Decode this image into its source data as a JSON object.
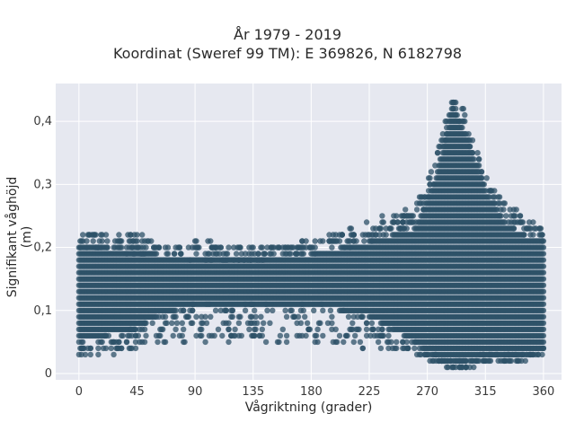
{
  "chart_data": {
    "type": "scatter",
    "title": "År 1979 - 2019",
    "subtitle": "Koordinat (Sweref 99 TM): E 369826, N 6182798",
    "xlabel": "Vågriktning (grader)",
    "ylabel": "Signifikant våghöjd (m)",
    "xlim": [
      -18,
      374
    ],
    "ylim": [
      -0.01,
      0.46
    ],
    "x_ticks": [
      0,
      45,
      90,
      135,
      180,
      225,
      270,
      315,
      360
    ],
    "x_tick_labels": [
      "0",
      "45",
      "90",
      "135",
      "180",
      "225",
      "270",
      "315",
      "360"
    ],
    "y_ticks": [
      0,
      0.1,
      0.2,
      0.3,
      0.4
    ],
    "y_tick_labels": [
      "0",
      "0,1",
      "0,2",
      "0,3",
      "0,4"
    ],
    "grid": true,
    "legend": "none",
    "colors": {
      "marker": "#2e5168",
      "plot_bg": "#e6e8f0",
      "grid": "#ffffff"
    },
    "envelope": [
      {
        "x": 0,
        "ymin": 0.03,
        "ymax": 0.23,
        "core_min": 0.05,
        "core_max": 0.2
      },
      {
        "x": 20,
        "ymin": 0.03,
        "ymax": 0.22,
        "core_min": 0.06,
        "core_max": 0.2
      },
      {
        "x": 45,
        "ymin": 0.04,
        "ymax": 0.22,
        "core_min": 0.07,
        "core_max": 0.19
      },
      {
        "x": 60,
        "ymin": 0.05,
        "ymax": 0.21,
        "core_min": 0.09,
        "core_max": 0.19
      },
      {
        "x": 90,
        "ymin": 0.05,
        "ymax": 0.21,
        "core_min": 0.11,
        "core_max": 0.18
      },
      {
        "x": 135,
        "ymin": 0.05,
        "ymax": 0.2,
        "core_min": 0.11,
        "core_max": 0.18
      },
      {
        "x": 180,
        "ymin": 0.05,
        "ymax": 0.21,
        "core_min": 0.11,
        "core_max": 0.19
      },
      {
        "x": 225,
        "ymin": 0.04,
        "ymax": 0.24,
        "core_min": 0.09,
        "core_max": 0.21
      },
      {
        "x": 260,
        "ymin": 0.03,
        "ymax": 0.26,
        "core_min": 0.05,
        "core_max": 0.23
      },
      {
        "x": 275,
        "ymin": 0.02,
        "ymax": 0.33,
        "core_min": 0.03,
        "core_max": 0.3
      },
      {
        "x": 290,
        "ymin": 0.01,
        "ymax": 0.44,
        "core_min": 0.02,
        "core_max": 0.42
      },
      {
        "x": 300,
        "ymin": 0.01,
        "ymax": 0.41,
        "core_min": 0.02,
        "core_max": 0.38
      },
      {
        "x": 315,
        "ymin": 0.02,
        "ymax": 0.32,
        "core_min": 0.03,
        "core_max": 0.29
      },
      {
        "x": 330,
        "ymin": 0.02,
        "ymax": 0.27,
        "core_min": 0.03,
        "core_max": 0.24
      },
      {
        "x": 345,
        "ymin": 0.02,
        "ymax": 0.25,
        "core_min": 0.03,
        "core_max": 0.22
      },
      {
        "x": 360,
        "ymin": 0.03,
        "ymax": 0.23,
        "core_min": 0.04,
        "core_max": 0.21
      }
    ]
  }
}
